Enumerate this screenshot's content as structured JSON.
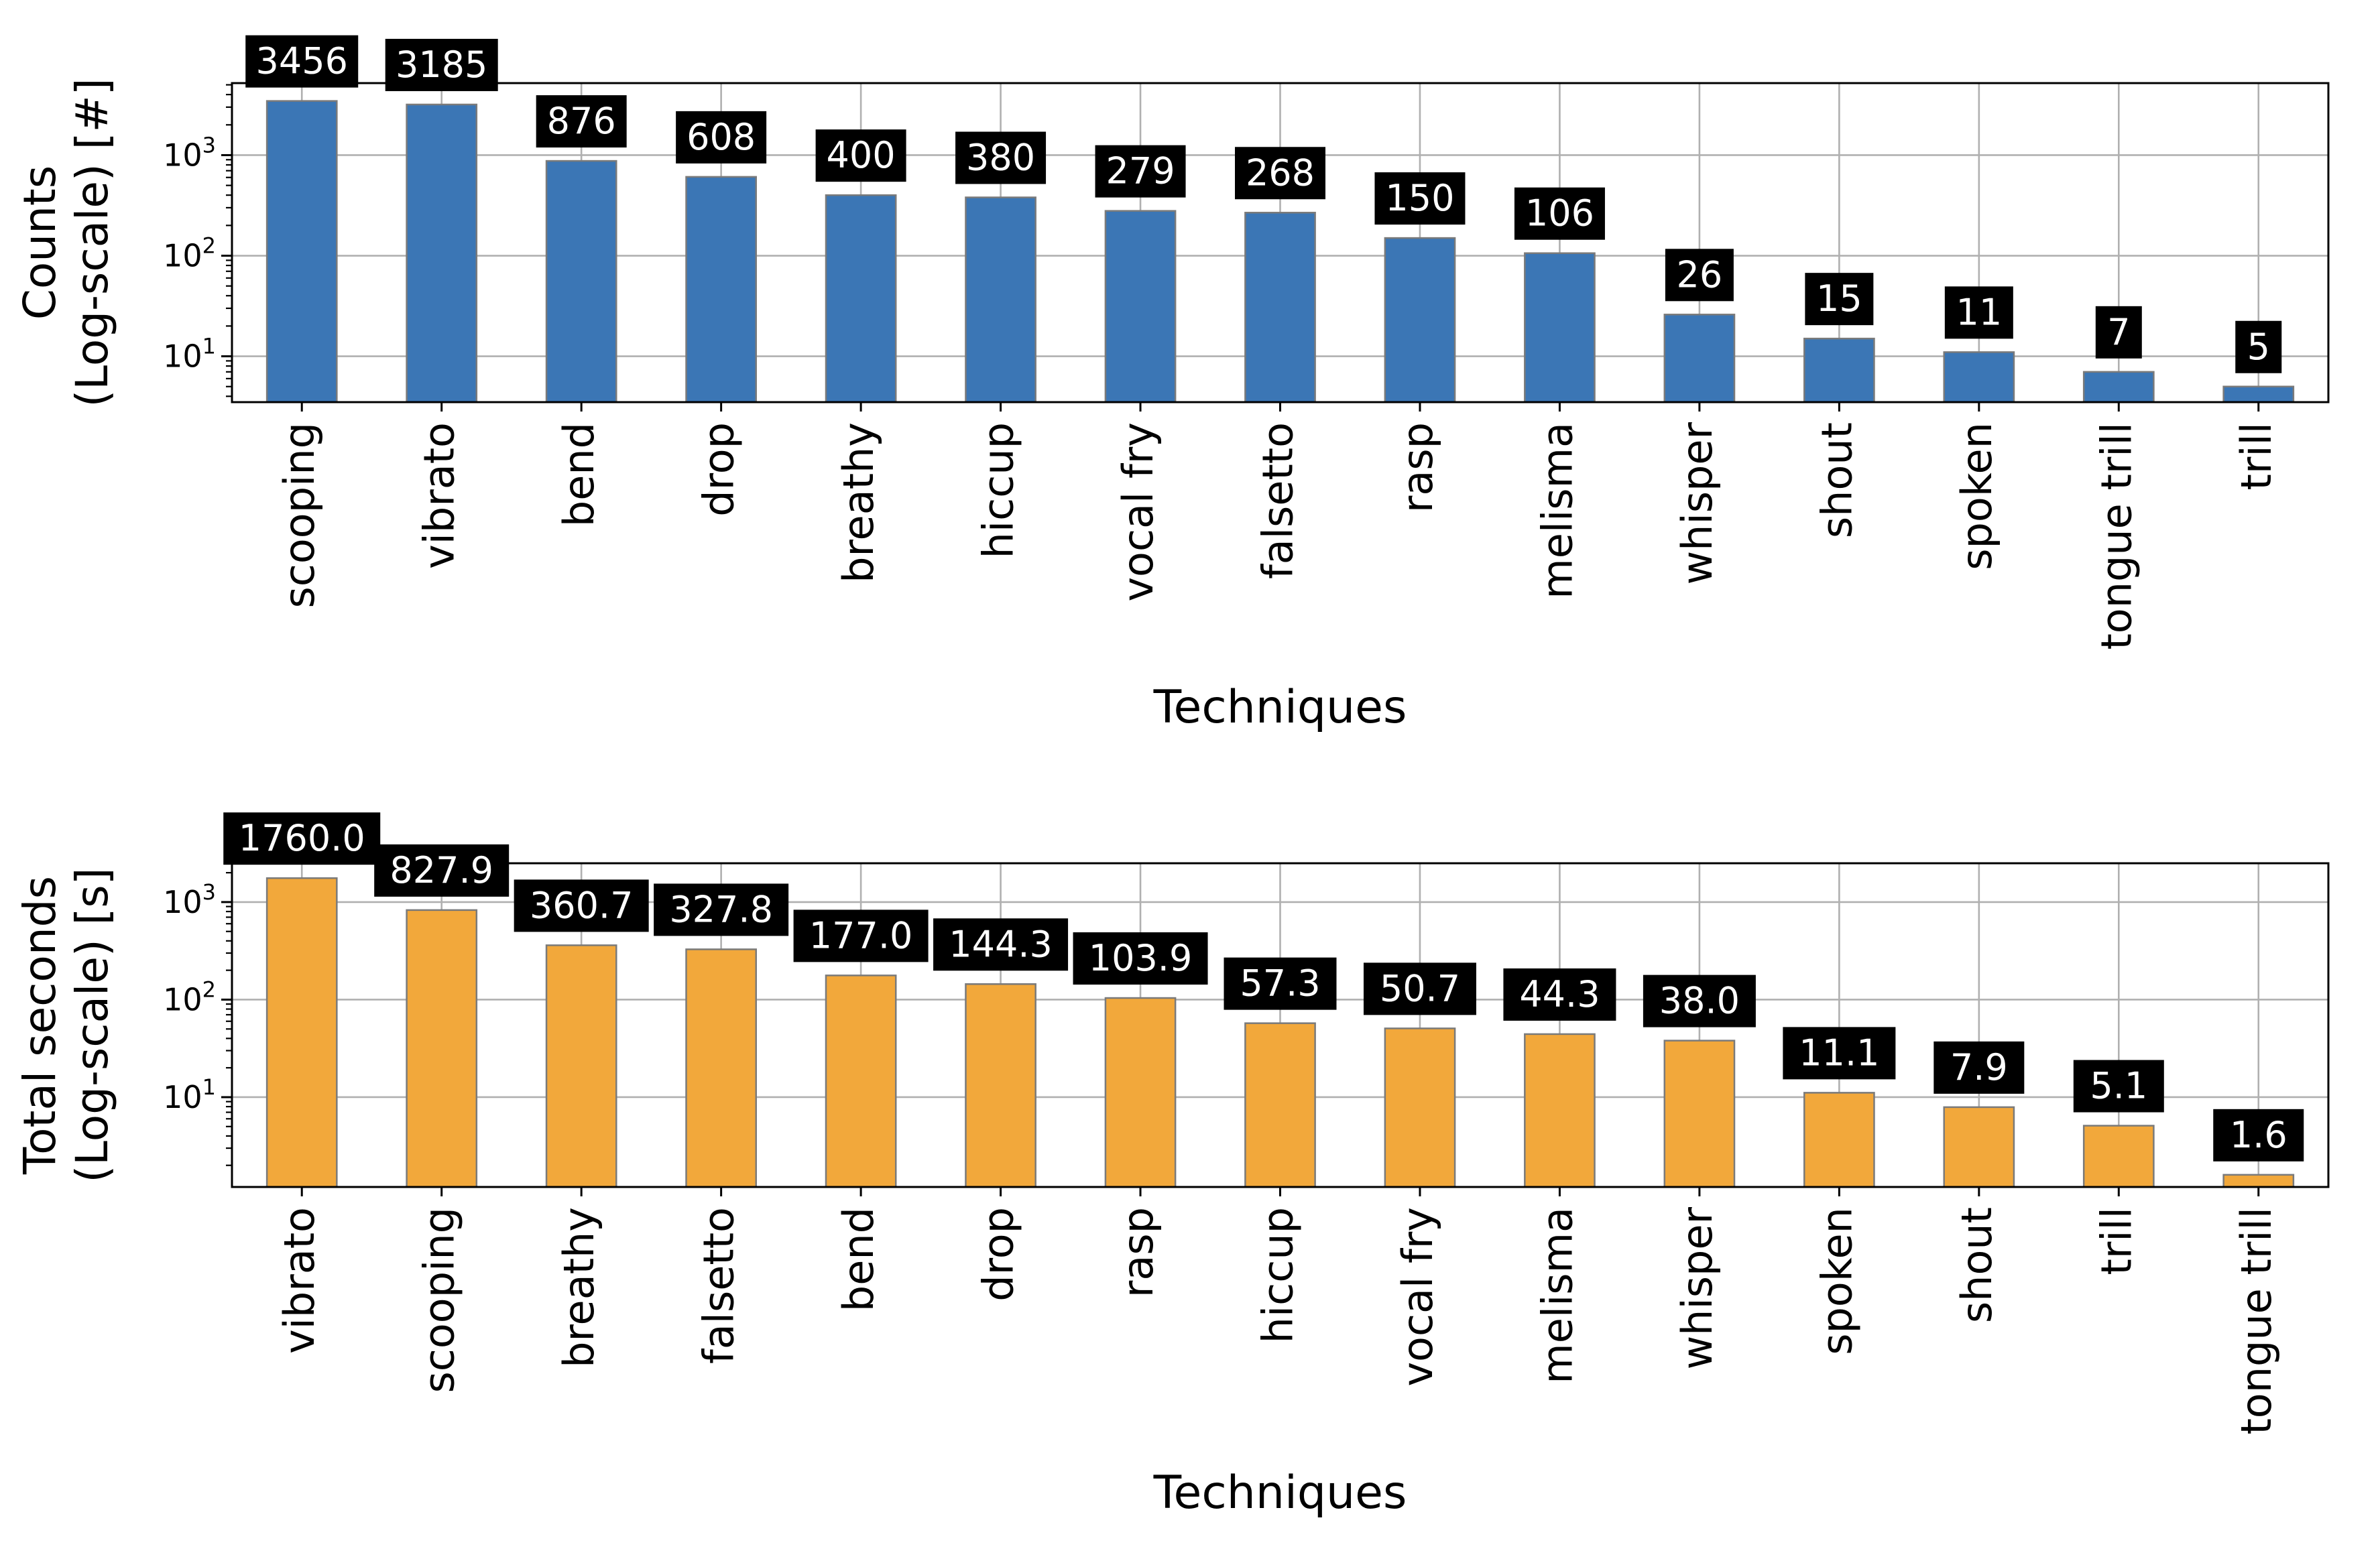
{
  "chart_data": [
    {
      "type": "bar",
      "scale": "log",
      "title": "",
      "xlabel": "Techniques",
      "ylabel_line1": "Counts",
      "ylabel_line2": "(Log-scale) [#]",
      "categories": [
        "scooping",
        "vibrato",
        "bend",
        "drop",
        "breathy",
        "hiccup",
        "vocal fry",
        "falsetto",
        "rasp",
        "melisma",
        "whisper",
        "shout",
        "spoken",
        "tongue trill",
        "trill"
      ],
      "values": [
        3456,
        3185,
        876,
        608,
        400,
        380,
        279,
        268,
        150,
        106,
        26,
        15,
        11,
        7,
        5
      ],
      "data_labels": [
        "3456",
        "3185",
        "876",
        "608",
        "400",
        "380",
        "279",
        "268",
        "150",
        "106",
        "26",
        "15",
        "11",
        "7",
        "5"
      ],
      "ylim": [
        3.5,
        5200
      ],
      "yticks": [
        10,
        100,
        1000
      ],
      "ytick_labels": [
        {
          "base": "10",
          "exp": "1"
        },
        {
          "base": "10",
          "exp": "2"
        },
        {
          "base": "10",
          "exp": "3"
        }
      ],
      "grid": true,
      "color": "#3b76b5"
    },
    {
      "type": "bar",
      "scale": "log",
      "title": "",
      "xlabel": "Techniques",
      "ylabel_line1": "Total seconds",
      "ylabel_line2": "(Log-scale) [s]",
      "categories": [
        "vibrato",
        "scooping",
        "breathy",
        "falsetto",
        "bend",
        "drop",
        "rasp",
        "hiccup",
        "vocal fry",
        "melisma",
        "whisper",
        "spoken",
        "shout",
        "trill",
        "tongue trill"
      ],
      "values": [
        1760.0,
        827.9,
        360.7,
        327.8,
        177.0,
        144.3,
        103.9,
        57.3,
        50.7,
        44.3,
        38.0,
        11.1,
        7.9,
        5.1,
        1.6
      ],
      "data_labels": [
        "1760.0",
        "827.9",
        "360.7",
        "327.8",
        "177.0",
        "144.3",
        "103.9",
        "57.3",
        "50.7",
        "44.3",
        "38.0",
        "11.1",
        "7.9",
        "5.1",
        "1.6"
      ],
      "ylim": [
        1.2,
        2500
      ],
      "yticks": [
        10,
        100,
        1000
      ],
      "ytick_labels": [
        {
          "base": "10",
          "exp": "1"
        },
        {
          "base": "10",
          "exp": "2"
        },
        {
          "base": "10",
          "exp": "3"
        }
      ],
      "grid": true,
      "color": "#f2a83b"
    }
  ]
}
